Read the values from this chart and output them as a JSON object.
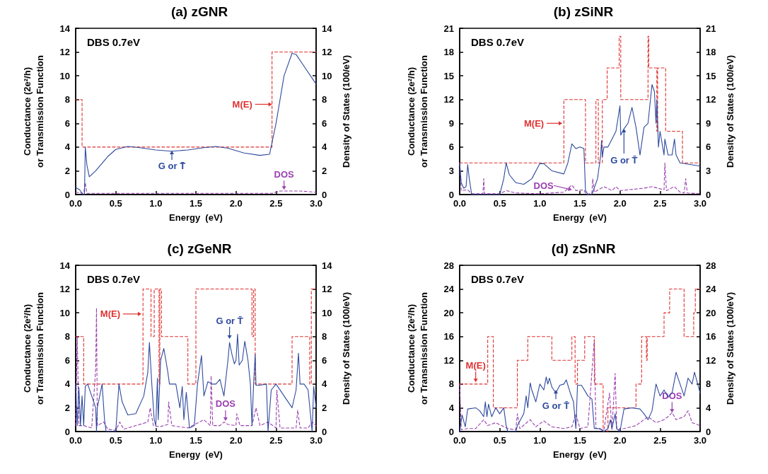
{
  "chart_data": [
    {
      "type": "line",
      "title": "(a) zGNR",
      "xlabel": "Energy  (eV)",
      "ylabel": "Conductance (2e²/h)\nor Transmission Function",
      "y2label": "Density of States (100/eV)",
      "marker": "none",
      "xlim": [
        0,
        3
      ],
      "xticks": [
        {
          "value": 0,
          "label": "0.0"
        },
        0.5,
        {
          "value": 1,
          "label": "1.0"
        },
        1.5,
        {
          "value": 2,
          "label": "2.0"
        },
        2.5,
        {
          "value": 3,
          "label": "3.0"
        }
      ],
      "ylim": [
        0,
        14
      ],
      "yticks": [
        0,
        2,
        4,
        6,
        8,
        10,
        12,
        14
      ],
      "y2lim": [
        0,
        14
      ],
      "y2ticks": [
        0,
        2,
        4,
        6,
        8,
        10,
        12,
        14
      ],
      "series": [
        {
          "type": "step",
          "color": "#e03030",
          "line_style": "dashed",
          "x": [
            0,
            0.08,
            2.45,
            3
          ],
          "values": [
            8,
            4,
            12,
            12
          ]
        },
        {
          "type": "line",
          "color": "#2e4a9e",
          "line_style": "solid",
          "x": [
            0,
            0.05,
            0.09,
            0.11,
            0.12,
            0.14,
            0.17,
            0.25,
            0.4,
            0.5,
            0.65,
            0.8,
            1.0,
            1.2,
            1.4,
            1.6,
            1.75,
            1.9,
            2.1,
            2.3,
            2.42,
            2.5,
            2.6,
            2.7,
            2.75,
            2.85,
            3.0
          ],
          "values": [
            0.6,
            0.4,
            0,
            0,
            4,
            2.5,
            1.5,
            2,
            3.2,
            3.8,
            4.05,
            3.95,
            3.75,
            3.65,
            3.75,
            3.95,
            4.05,
            3.9,
            3.5,
            3.3,
            3.4,
            6,
            10,
            11.9,
            11.8,
            10.8,
            9.3
          ]
        },
        {
          "type": "line",
          "color": "#9b40b0",
          "line_style": "dashed",
          "axis": "y2",
          "x": [
            0,
            0.1,
            0.12,
            0.14,
            2.45,
            2.55,
            2.8,
            3
          ],
          "values": [
            0.2,
            0.1,
            1,
            0.1,
            0.1,
            0.3,
            0.3,
            0.2
          ]
        }
      ],
      "annotations": [
        "DBS 0.7eV",
        {
          "text": "M(E)",
          "x": 2.45,
          "y": 7.6
        },
        {
          "text": "G or T̄",
          "x": 1.2,
          "y": 3.7
        },
        {
          "text": "DOS",
          "x": 2.6,
          "y": 0.4
        }
      ]
    },
    {
      "type": "line",
      "title": "(b) zSiNR",
      "xlabel": "Energy  (eV)",
      "ylabel": "Conductance (2e²/h)\nor Transmission Function",
      "y2label": "Density of States (100/eV)",
      "marker": "none",
      "xlim": [
        0,
        3
      ],
      "xticks": [
        {
          "value": 0,
          "label": "0.0"
        },
        0.5,
        {
          "value": 1,
          "label": "1.0"
        },
        1.5,
        {
          "value": 2,
          "label": "2.0"
        },
        2.5,
        {
          "value": 3,
          "label": "3.0"
        }
      ],
      "ylim": [
        0,
        21
      ],
      "yticks": [
        0,
        3,
        6,
        9,
        12,
        15,
        18,
        21
      ],
      "y2lim": [
        0,
        21
      ],
      "y2ticks": [
        0,
        3,
        6,
        9,
        12,
        15,
        18,
        21
      ],
      "series": [
        {
          "type": "step",
          "color": "#e03030",
          "line_style": "dashed",
          "x": [
            0,
            1.3,
            1.57,
            1.7,
            1.73,
            1.78,
            1.84,
            1.99,
            2.01,
            2.35,
            2.36,
            2.46,
            2.47,
            2.57,
            2.78,
            3
          ],
          "values": [
            4,
            12,
            4,
            12,
            4,
            12,
            16,
            20,
            12,
            20,
            16,
            8,
            16,
            8,
            4,
            4
          ]
        },
        {
          "type": "line",
          "color": "#2e4a9e",
          "line_style": "solid",
          "x": [
            0,
            0.02,
            0.05,
            0.08,
            0.1,
            0.12,
            0.15,
            0.5,
            0.55,
            0.58,
            0.62,
            0.7,
            0.8,
            0.9,
            1.0,
            1.05,
            1.15,
            1.3,
            1.35,
            1.4,
            1.45,
            1.5,
            1.55,
            1.57,
            1.6,
            1.65,
            1.72,
            1.76,
            1.77,
            1.78,
            1.8,
            1.85,
            1.9,
            1.95,
            2.0,
            2.01,
            2.05,
            2.1,
            2.15,
            2.2,
            2.25,
            2.3,
            2.35,
            2.4,
            2.43,
            2.45,
            2.46,
            2.48,
            2.5,
            2.55,
            2.56,
            2.6,
            2.65,
            2.68,
            2.7,
            2.75,
            3.0
          ],
          "values": [
            4,
            1.5,
            0.8,
            1,
            3.8,
            2,
            0,
            0,
            2,
            4,
            2.5,
            1.5,
            1.3,
            2,
            3.9,
            3.9,
            3,
            2.6,
            4,
            6.4,
            5.8,
            6,
            5.8,
            0.5,
            0,
            0,
            2,
            5,
            6.8,
            4.8,
            6,
            6,
            7,
            8,
            11.2,
            7.5,
            8.3,
            9,
            11,
            8.5,
            5,
            8.5,
            9,
            13.9,
            13,
            9,
            12,
            6,
            8,
            5,
            7,
            5,
            5,
            7,
            5,
            4,
            3.6
          ]
        },
        {
          "type": "line",
          "color": "#9b40b0",
          "line_style": "dashed",
          "axis": "y2",
          "x": [
            0,
            0.02,
            0.1,
            0.15,
            0.29,
            0.3,
            0.31,
            0.5,
            0.58,
            0.7,
            1.0,
            1.3,
            1.4,
            1.45,
            1.55,
            1.58,
            1.65,
            1.66,
            1.68,
            1.8,
            1.9,
            1.95,
            2.0,
            2.1,
            2.3,
            2.4,
            2.55,
            2.56,
            2.58,
            2.68,
            2.75,
            2.8,
            2.82,
            2.84,
            3
          ],
          "values": [
            4,
            0.5,
            0.6,
            0.1,
            0.1,
            2,
            0.1,
            0.1,
            0.5,
            0.2,
            0.1,
            0.3,
            1.2,
            0.5,
            0.6,
            0,
            0.2,
            2,
            0.3,
            1,
            0.5,
            1,
            0.5,
            0.6,
            0.8,
            1,
            0.6,
            4,
            0.5,
            1,
            0.3,
            0.2,
            2,
            0.2,
            0.1
          ]
        }
      ],
      "annotations": [
        "DBS 0.7eV",
        {
          "text": "M(E)",
          "x": 1.28,
          "y": 9
        },
        {
          "text": "G or T̄",
          "x": 2.05,
          "y": 8.3
        },
        {
          "text": "DOS",
          "x": 1.4,
          "y": 0.6
        }
      ]
    },
    {
      "type": "line",
      "title": "(c) zGeNR",
      "xlabel": "Energy  (eV)",
      "ylabel": "Conductance (2e²/h)\nor Transmission Function",
      "y2label": "Density of States (100/eV)",
      "marker": "none",
      "xlim": [
        0,
        3
      ],
      "xticks": [
        {
          "value": 0,
          "label": "0.0"
        },
        0.5,
        {
          "value": 1,
          "label": "1.0"
        },
        1.5,
        {
          "value": 2,
          "label": "2.0"
        },
        2.5,
        {
          "value": 3,
          "label": "3.0"
        }
      ],
      "ylim": [
        0,
        14
      ],
      "yticks": [
        0,
        2,
        4,
        6,
        8,
        10,
        12,
        14
      ],
      "y2lim": [
        0,
        14
      ],
      "y2ticks": [
        0,
        2,
        4,
        6,
        8,
        10,
        12,
        14
      ],
      "series": [
        {
          "type": "step",
          "color": "#e03030",
          "line_style": "dashed",
          "x": [
            0,
            0.1,
            0.84,
            0.94,
            0.98,
            1.04,
            1.05,
            1.07,
            1.4,
            1.5,
            2.2,
            2.22,
            2.24,
            2.7,
            2.92,
            2.94,
            3
          ],
          "values": [
            8,
            4,
            12,
            8,
            12,
            4,
            12,
            8,
            4,
            12,
            8,
            12,
            4,
            8,
            4,
            12,
            12
          ]
        },
        {
          "type": "line",
          "color": "#2e4a9e",
          "line_style": "solid",
          "x": [
            0,
            0.02,
            0.04,
            0.06,
            0.08,
            0.1,
            0.12,
            0.15,
            0.2,
            0.25,
            0.26,
            0.27,
            0.3,
            0.33,
            0.36,
            0.38,
            0.5,
            0.54,
            0.58,
            0.65,
            0.75,
            0.85,
            0.9,
            0.92,
            0.95,
            0.98,
            1.0,
            1.02,
            1.03,
            1.06,
            1.1,
            1.15,
            1.17,
            1.25,
            1.3,
            1.33,
            1.35,
            1.38,
            1.42,
            1.48,
            1.52,
            1.57,
            1.6,
            1.65,
            1.7,
            1.75,
            1.8,
            1.85,
            1.9,
            1.92,
            1.95,
            1.98,
            2.0,
            2.02,
            2.04,
            2.08,
            2.11,
            2.15,
            2.18,
            2.2,
            2.22,
            2.24,
            2.25,
            2.3,
            2.38,
            2.4,
            2.44,
            2.5,
            2.6,
            2.7,
            2.75,
            2.78,
            2.8,
            2.85,
            2.9,
            2.95,
            2.97,
            3
          ],
          "values": [
            4,
            0.5,
            3.7,
            0.5,
            3,
            0.5,
            3.8,
            4,
            3,
            2,
            0,
            2,
            3,
            4,
            1,
            0,
            0,
            4,
            2.5,
            1.4,
            1.5,
            3,
            5,
            7.5,
            4,
            1,
            0.5,
            4.5,
            1,
            6,
            7,
            5,
            4,
            4,
            2,
            3.8,
            1,
            3.3,
            0.3,
            0.5,
            4,
            6.4,
            3,
            4.2,
            4,
            4,
            4.4,
            3,
            6,
            7.5,
            6.5,
            5.7,
            6,
            8.2,
            5.6,
            6,
            7.6,
            6,
            4,
            0.5,
            4,
            6.5,
            3.9,
            3.9,
            4,
            0,
            3.5,
            4,
            3,
            2,
            3.5,
            6.6,
            4,
            4,
            3.5,
            0,
            3.8,
            2
          ]
        },
        {
          "type": "line",
          "color": "#9b40b0",
          "line_style": "dashed",
          "axis": "y2",
          "x": [
            0,
            0.02,
            0.04,
            0.1,
            0.2,
            0.25,
            0.26,
            0.27,
            0.35,
            0.4,
            0.5,
            0.55,
            0.6,
            0.9,
            0.93,
            0.97,
            1.05,
            1.15,
            1.16,
            1.2,
            1.4,
            1.6,
            1.68,
            1.69,
            1.71,
            1.8,
            1.85,
            1.9,
            2.0,
            2.01,
            2.05,
            2.2,
            2.25,
            2.3,
            2.4,
            2.5,
            2.51,
            2.55,
            2.75,
            2.77,
            2.8,
            2.9,
            2.95,
            3
          ],
          "values": [
            0.5,
            8,
            0.5,
            0.5,
            0.3,
            5.3,
            10.4,
            0.5,
            0.8,
            0.2,
            0.1,
            0.8,
            0.2,
            0.8,
            2,
            0.5,
            0.4,
            0.6,
            2.5,
            0.5,
            0.3,
            1,
            0.5,
            4.7,
            0.5,
            0.5,
            0.8,
            0.6,
            0.5,
            1.5,
            0.5,
            0.5,
            2,
            0.5,
            0.8,
            0.3,
            3.5,
            0.3,
            0.3,
            1.8,
            0.3,
            0.3,
            0.8,
            0.5
          ]
        }
      ],
      "annotations": [
        "DBS 0.7eV",
        {
          "text": "M(E)",
          "x": 0.82,
          "y": 9.9
        },
        {
          "text": "G or T̄",
          "x": 1.92,
          "y": 7.8
        },
        {
          "text": "DOS",
          "x": 1.87,
          "y": 0.9
        }
      ]
    },
    {
      "type": "line",
      "title": "(d) zSnNR",
      "xlabel": "Energy  (eV)",
      "ylabel": "Conductance (2e²/h)\nor Transmission Function",
      "y2label": "Density of States (100/eV)",
      "marker": "none",
      "xlim": [
        0,
        3
      ],
      "xticks": [
        {
          "value": 0,
          "label": "0.0"
        },
        0.5,
        {
          "value": 1,
          "label": "1.0"
        },
        1.5,
        {
          "value": 2,
          "label": "2.0"
        },
        2.5,
        {
          "value": 3,
          "label": "3.0"
        }
      ],
      "ylim": [
        0,
        28
      ],
      "yticks": [
        0,
        4,
        8,
        12,
        16,
        20,
        24,
        28
      ],
      "y2lim": [
        0,
        28
      ],
      "y2ticks": [
        0,
        4,
        8,
        12,
        16,
        20,
        24,
        28
      ],
      "series": [
        {
          "type": "step",
          "color": "#e03030",
          "line_style": "dashed",
          "x": [
            0,
            0.35,
            0.42,
            0.72,
            0.85,
            1.15,
            1.4,
            1.44,
            1.47,
            1.56,
            1.68,
            1.79,
            1.85,
            2.2,
            2.27,
            2.33,
            2.34,
            2.55,
            2.62,
            2.8,
            2.92,
            2.94,
            3
          ],
          "values": [
            8,
            16,
            4,
            12,
            16,
            12,
            16,
            8,
            12,
            16,
            8,
            0,
            4,
            8,
            16,
            12,
            16,
            20,
            24,
            16,
            20,
            24,
            24
          ]
        },
        {
          "type": "line",
          "color": "#2e4a9e",
          "line_style": "solid",
          "x": [
            0,
            0.03,
            0.07,
            0.1,
            0.2,
            0.25,
            0.3,
            0.32,
            0.34,
            0.36,
            0.4,
            0.45,
            0.5,
            0.55,
            0.58,
            0.6,
            0.7,
            0.72,
            0.8,
            0.83,
            0.85,
            0.88,
            0.9,
            0.95,
            1.0,
            1.05,
            1.08,
            1.1,
            1.12,
            1.15,
            1.2,
            1.25,
            1.3,
            1.33,
            1.38,
            1.42,
            1.45,
            1.47,
            1.52,
            1.6,
            1.65,
            1.68,
            1.75,
            1.8,
            1.85,
            1.88,
            1.9,
            1.94,
            1.96,
            2.0,
            2.05,
            2.15,
            2.25,
            2.3,
            2.35,
            2.4,
            2.45,
            2.5,
            2.55,
            2.6,
            2.65,
            2.7,
            2.75,
            2.8,
            2.85,
            2.9,
            2.93,
            3
          ],
          "values": [
            0,
            2.8,
            0.8,
            3.8,
            4,
            3.5,
            2.5,
            5,
            2.5,
            4.6,
            2.5,
            4,
            3,
            4,
            1,
            0,
            0,
            1,
            3,
            6,
            4,
            8.2,
            7,
            5,
            8,
            7,
            9.2,
            8,
            9,
            7.5,
            6.5,
            7.8,
            8,
            8.7,
            6.5,
            5,
            0.5,
            7.8,
            7.8,
            6,
            5.5,
            0.5,
            0.5,
            0,
            0.5,
            2,
            0.5,
            3,
            0.5,
            0,
            3.8,
            4,
            3.8,
            3,
            2,
            3.5,
            8,
            6,
            7,
            5.8,
            6.5,
            10,
            8,
            6,
            9,
            8,
            10,
            6.5
          ]
        },
        {
          "type": "line",
          "color": "#9b40b0",
          "line_style": "dashed",
          "axis": "y2",
          "x": [
            0,
            0.02,
            0.1,
            0.2,
            0.3,
            0.35,
            0.45,
            0.6,
            0.7,
            0.72,
            0.75,
            0.88,
            0.95,
            1.05,
            1.15,
            1.3,
            1.4,
            1.45,
            1.5,
            1.6,
            1.68,
            1.7,
            1.8,
            1.87,
            1.9,
            1.94,
            1.96,
            2.05,
            2.2,
            2.35,
            2.45,
            2.55,
            2.6,
            2.65,
            2.7,
            2.8,
            2.85,
            2.9,
            3
          ],
          "values": [
            8,
            0.3,
            0.5,
            0.5,
            2,
            1,
            1.5,
            0.5,
            0.3,
            3,
            0.5,
            2,
            0.8,
            1.8,
            0.8,
            0.5,
            0.8,
            3,
            0.5,
            0.8,
            15.5,
            0.5,
            0.3,
            6.5,
            0.3,
            9.8,
            0.3,
            0.5,
            1,
            2.5,
            1.5,
            2,
            2.5,
            3.2,
            2,
            2.5,
            3.5,
            1.5,
            1
          ]
        }
      ],
      "annotations": [
        "DBS 0.7eV",
        {
          "text": "M(E)",
          "x": 0.2,
          "y": 8.3
        },
        {
          "text": "G or T̄",
          "x": 1.2,
          "y": 7
        },
        {
          "text": "DOS",
          "x": 2.65,
          "y": 3.2
        }
      ]
    }
  ]
}
